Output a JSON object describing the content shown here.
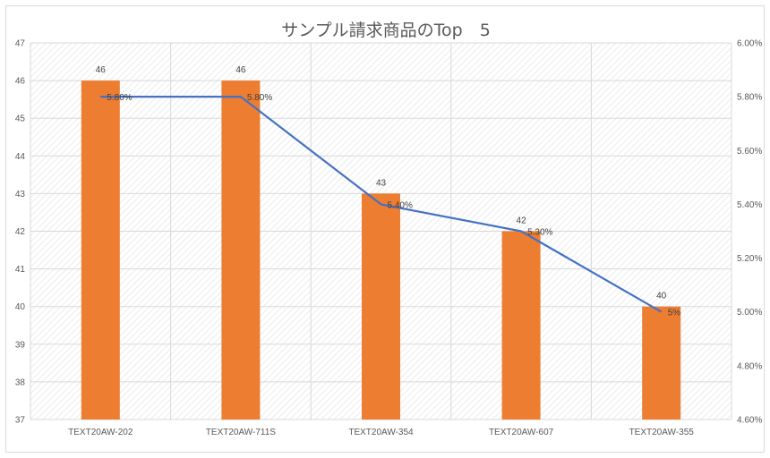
{
  "chart_data": {
    "type": "bar",
    "title": "サンプル請求商品のTop　5",
    "categories": [
      "TEXT20AW-202",
      "TEXT20AW-711S",
      "TEXT20AW-354",
      "TEXT20AW-607",
      "TEXT20AW-355"
    ],
    "series": [
      {
        "type": "bar",
        "axis": "primary",
        "color": "#ed7d31",
        "values": [
          46,
          46,
          43,
          42,
          40
        ],
        "labels": [
          "46",
          "46",
          "43",
          "42",
          "40"
        ]
      },
      {
        "type": "line",
        "axis": "secondary",
        "color": "#4472c4",
        "values": [
          0.058,
          0.058,
          0.054,
          0.053,
          0.05
        ],
        "labels": [
          "5.80%",
          "5.80%",
          "5.40%",
          "5.30%",
          "5%"
        ]
      }
    ],
    "y_axis": {
      "min": 37,
      "max": 47,
      "ticks": [
        "37",
        "38",
        "39",
        "40",
        "41",
        "42",
        "43",
        "44",
        "45",
        "46",
        "47"
      ]
    },
    "y2_axis": {
      "min": 0.046,
      "max": 0.06,
      "ticks": [
        "4.60%",
        "4.80%",
        "5.00%",
        "5.20%",
        "5.40%",
        "5.60%",
        "5.80%",
        "6.00%"
      ]
    },
    "grid": true,
    "legend": "none"
  }
}
